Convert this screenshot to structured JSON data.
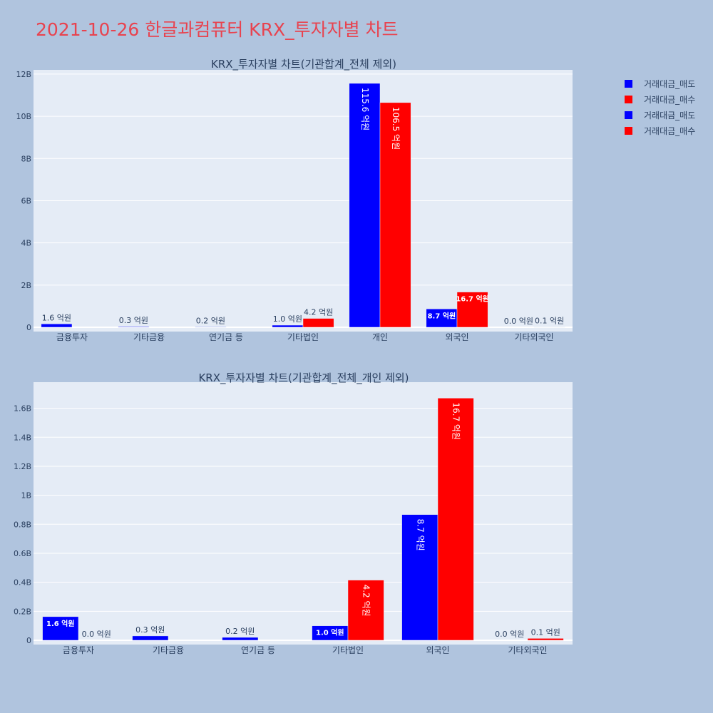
{
  "page": {
    "title": "2021-10-26 한글과컴퓨터 KRX_투자자별 차트"
  },
  "colors": {
    "sell": "#0000ff",
    "buy": "#ff0000"
  },
  "legend": [
    {
      "label": "거래대금_매도",
      "color": "#0000ff"
    },
    {
      "label": "거래대금_매수",
      "color": "#ff0000"
    },
    {
      "label": "거래대금_매도",
      "color": "#0000ff"
    },
    {
      "label": "거래대금_매수",
      "color": "#ff0000"
    }
  ],
  "chart_data": [
    {
      "type": "bar",
      "title": "KRX_투자자별 차트(기관합계_전체 제외)",
      "categories": [
        "금융투자",
        "기타금융",
        "연기금 등",
        "기타법인",
        "개인",
        "외국인",
        "기타외국인"
      ],
      "ylim": [
        0,
        12.2
      ],
      "yticks": [
        0,
        2,
        4,
        6,
        8,
        10,
        12
      ],
      "ytick_labels": [
        "0",
        "2B",
        "4B",
        "6B",
        "8B",
        "10B",
        "12B"
      ],
      "legend": "top-right",
      "series": [
        {
          "name": "거래대금_매도",
          "values": [
            0.16,
            0.03,
            0.02,
            0.1,
            11.56,
            0.87,
            0.0
          ],
          "labels": [
            "1.6 억원",
            "0.3 억원",
            "0.2 억원",
            "1.0 억원",
            "115.6 억원",
            "8.7 억원",
            "0.0 억원"
          ]
        },
        {
          "name": "거래대금_매수",
          "values": [
            0.0,
            0.0,
            0.0,
            0.42,
            10.65,
            1.67,
            0.01
          ],
          "labels": [
            "",
            "",
            "",
            "4.2 억원",
            "106.5 억원",
            "16.7 억원",
            "0.1 억원"
          ]
        }
      ]
    },
    {
      "type": "bar",
      "title": "KRX_투자자별 차트(기관합계_전체_개인 제외)",
      "categories": [
        "금융투자",
        "기타금융",
        "연기금 등",
        "기타법인",
        "외국인",
        "기타외국인"
      ],
      "ylim": [
        0,
        1.78
      ],
      "yticks": [
        0,
        0.2,
        0.4,
        0.6,
        0.8,
        1,
        1.2,
        1.4,
        1.6
      ],
      "ytick_labels": [
        "0",
        "0.2B",
        "0.4B",
        "0.6B",
        "0.8B",
        "1B",
        "1.2B",
        "1.4B",
        "1.6B"
      ],
      "series": [
        {
          "name": "거래대금_매도",
          "values": [
            0.163,
            0.03,
            0.02,
            0.1,
            0.867,
            0.0
          ],
          "labels": [
            "1.6 억원",
            "0.3 억원",
            "0.2 억원",
            "1.0 억원",
            "8.7 억원",
            "0.0 억원"
          ]
        },
        {
          "name": "거래대금_매수",
          "values": [
            0.0,
            0.0,
            0.0,
            0.415,
            1.67,
            0.013
          ],
          "labels": [
            "0.0 억원",
            "",
            "",
            "4.2 억원",
            "16.7 억원",
            "0.1 억원"
          ]
        }
      ]
    }
  ]
}
